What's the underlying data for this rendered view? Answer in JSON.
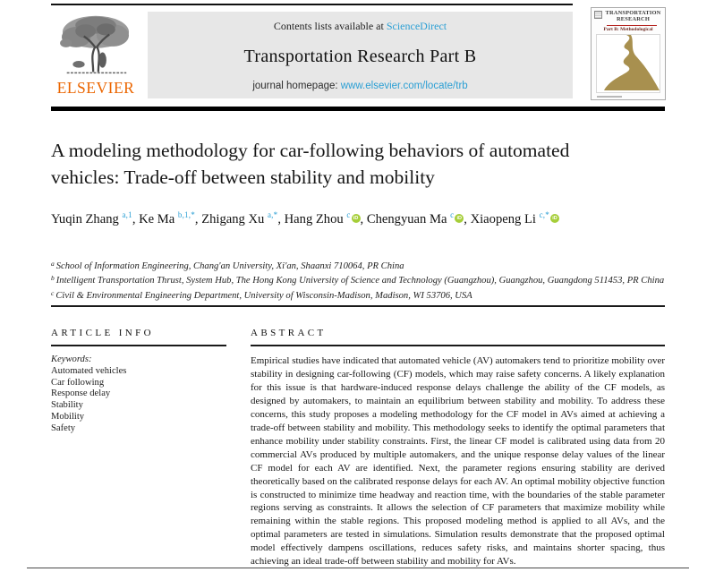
{
  "colors": {
    "link": "#2b9fd4",
    "orcid_green": "#a6ce39",
    "elsevier_orange": "#eb6500",
    "road_tan": "#a8904f",
    "cover_red": "#b6231f",
    "band_gray": "#e7e7e7"
  },
  "header": {
    "contents_prefix": "Contents lists available at ",
    "contents_link": "ScienceDirect",
    "journal_name": "Transportation Research Part B",
    "homepage_prefix": "journal homepage: ",
    "homepage_link": "www.elsevier.com/locate/trb",
    "publisher_wordmark": "ELSEVIER"
  },
  "cover": {
    "title_line1": "TRANSPORTATION",
    "title_line2": "RESEARCH",
    "subtitle": "Part B: Methodological"
  },
  "article": {
    "title": "A modeling methodology for car-following behaviors of automated vehicles: Trade-off between stability and mobility"
  },
  "authors": [
    {
      "name": "Yuqin Zhang",
      "sup": "a,1",
      "orcid": false
    },
    {
      "name": "Ke Ma",
      "sup": "b,1,*",
      "orcid": false
    },
    {
      "name": "Zhigang Xu",
      "sup": "a,*",
      "orcid": false
    },
    {
      "name": "Hang Zhou",
      "sup": "c",
      "orcid": true
    },
    {
      "name": "Chengyuan Ma",
      "sup": "c",
      "orcid": true
    },
    {
      "name": "Xiaopeng Li",
      "sup": "c,*",
      "orcid": true
    }
  ],
  "affiliations": [
    {
      "sup": "a",
      "text": "School of Information Engineering, Chang'an University, Xi'an, Shaanxi 710064, PR China"
    },
    {
      "sup": "b",
      "text": "Intelligent Transportation Thrust, System Hub, The Hong Kong University of Science and Technology (Guangzhou), Guangzhou, Guangdong 511453, PR China"
    },
    {
      "sup": "c",
      "text": "Civil & Environmental Engineering Department, University of Wisconsin-Madison, Madison, WI 53706, USA"
    }
  ],
  "article_info": {
    "header": "ARTICLE INFO",
    "keywords_label": "Keywords:",
    "keywords": [
      "Automated vehicles",
      "Car following",
      "Response delay",
      "Stability",
      "Mobility",
      "Safety"
    ]
  },
  "abstract": {
    "header": "ABSTRACT",
    "text": "Empirical studies have indicated that automated vehicle (AV) automakers tend to prioritize mobility over stability in designing car-following (CF) models, which may raise safety concerns. A likely explanation for this issue is that hardware-induced response delays challenge the ability of the CF models, as designed by automakers, to maintain an equilibrium between stability and mobility. To address these concerns, this study proposes a modeling methodology for the CF model in AVs aimed at achieving a trade-off between stability and mobility. This methodology seeks to identify the optimal parameters that enhance mobility under stability constraints. First, the linear CF model is calibrated using data from 20 commercial AVs produced by multiple automakers, and the unique response delay values of the linear CF model for each AV are identified. Next, the parameter regions ensuring stability are derived theoretically based on the calibrated response delays for each AV. An optimal mobility objective function is constructed to minimize time headway and reaction time, with the boundaries of the stable parameter regions serving as constraints. It allows the selection of CF parameters that maximize mobility while remaining within the stable regions. This proposed modeling method is applied to all AVs, and the optimal parameters are tested in simulations. Simulation results demonstrate that the proposed optimal model effectively dampens oscillations, reduces safety risks, and maintains shorter spacing, thus achieving an ideal trade-off between stability and mobility for AVs."
  }
}
